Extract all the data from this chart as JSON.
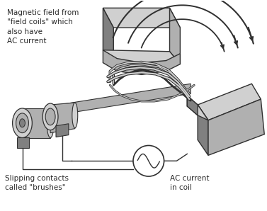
{
  "bg_color": "#ffffff",
  "text_color": "#2a2a2a",
  "label1": "Magnetic field from\n\"field coils\" which\nalso have\nAC current",
  "label2": "Slipping contacts\ncalled \"brushes\"",
  "label3": "AC current\nin coil",
  "gray_light": "#d0d0d0",
  "gray_mid": "#b0b0b0",
  "gray_dark": "#808080",
  "gray_outline": "#303030",
  "font_size": 7.5
}
